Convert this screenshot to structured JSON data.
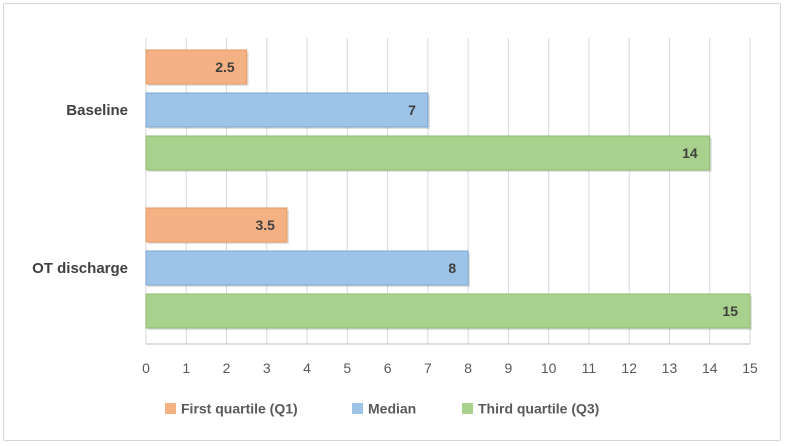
{
  "chart_data": {
    "type": "bar",
    "orientation": "horizontal",
    "title": "",
    "xlabel": "",
    "ylabel": "",
    "categories": [
      "Baseline",
      "OT discharge"
    ],
    "series": [
      {
        "name": "First quartile (Q1)",
        "values": [
          2.5,
          3.5
        ],
        "labels": [
          "2.5",
          "3.5"
        ],
        "color": "#f4b183",
        "stroke": "#e59a63"
      },
      {
        "name": "Median",
        "values": [
          7,
          8
        ],
        "labels": [
          "7",
          "8"
        ],
        "color": "#9dc3e6",
        "stroke": "#7aa6d1"
      },
      {
        "name": "Third quartile (Q3)",
        "values": [
          14,
          15
        ],
        "labels": [
          "14",
          "15"
        ],
        "color": "#a9d18e",
        "stroke": "#8cbb6f"
      }
    ],
    "xlim": [
      0,
      15
    ],
    "ticks": [
      "0",
      "1",
      "2",
      "3",
      "4",
      "5",
      "6",
      "7",
      "8",
      "9",
      "10",
      "11",
      "12",
      "13",
      "14",
      "15"
    ],
    "grid": true,
    "legend": "bottom"
  }
}
